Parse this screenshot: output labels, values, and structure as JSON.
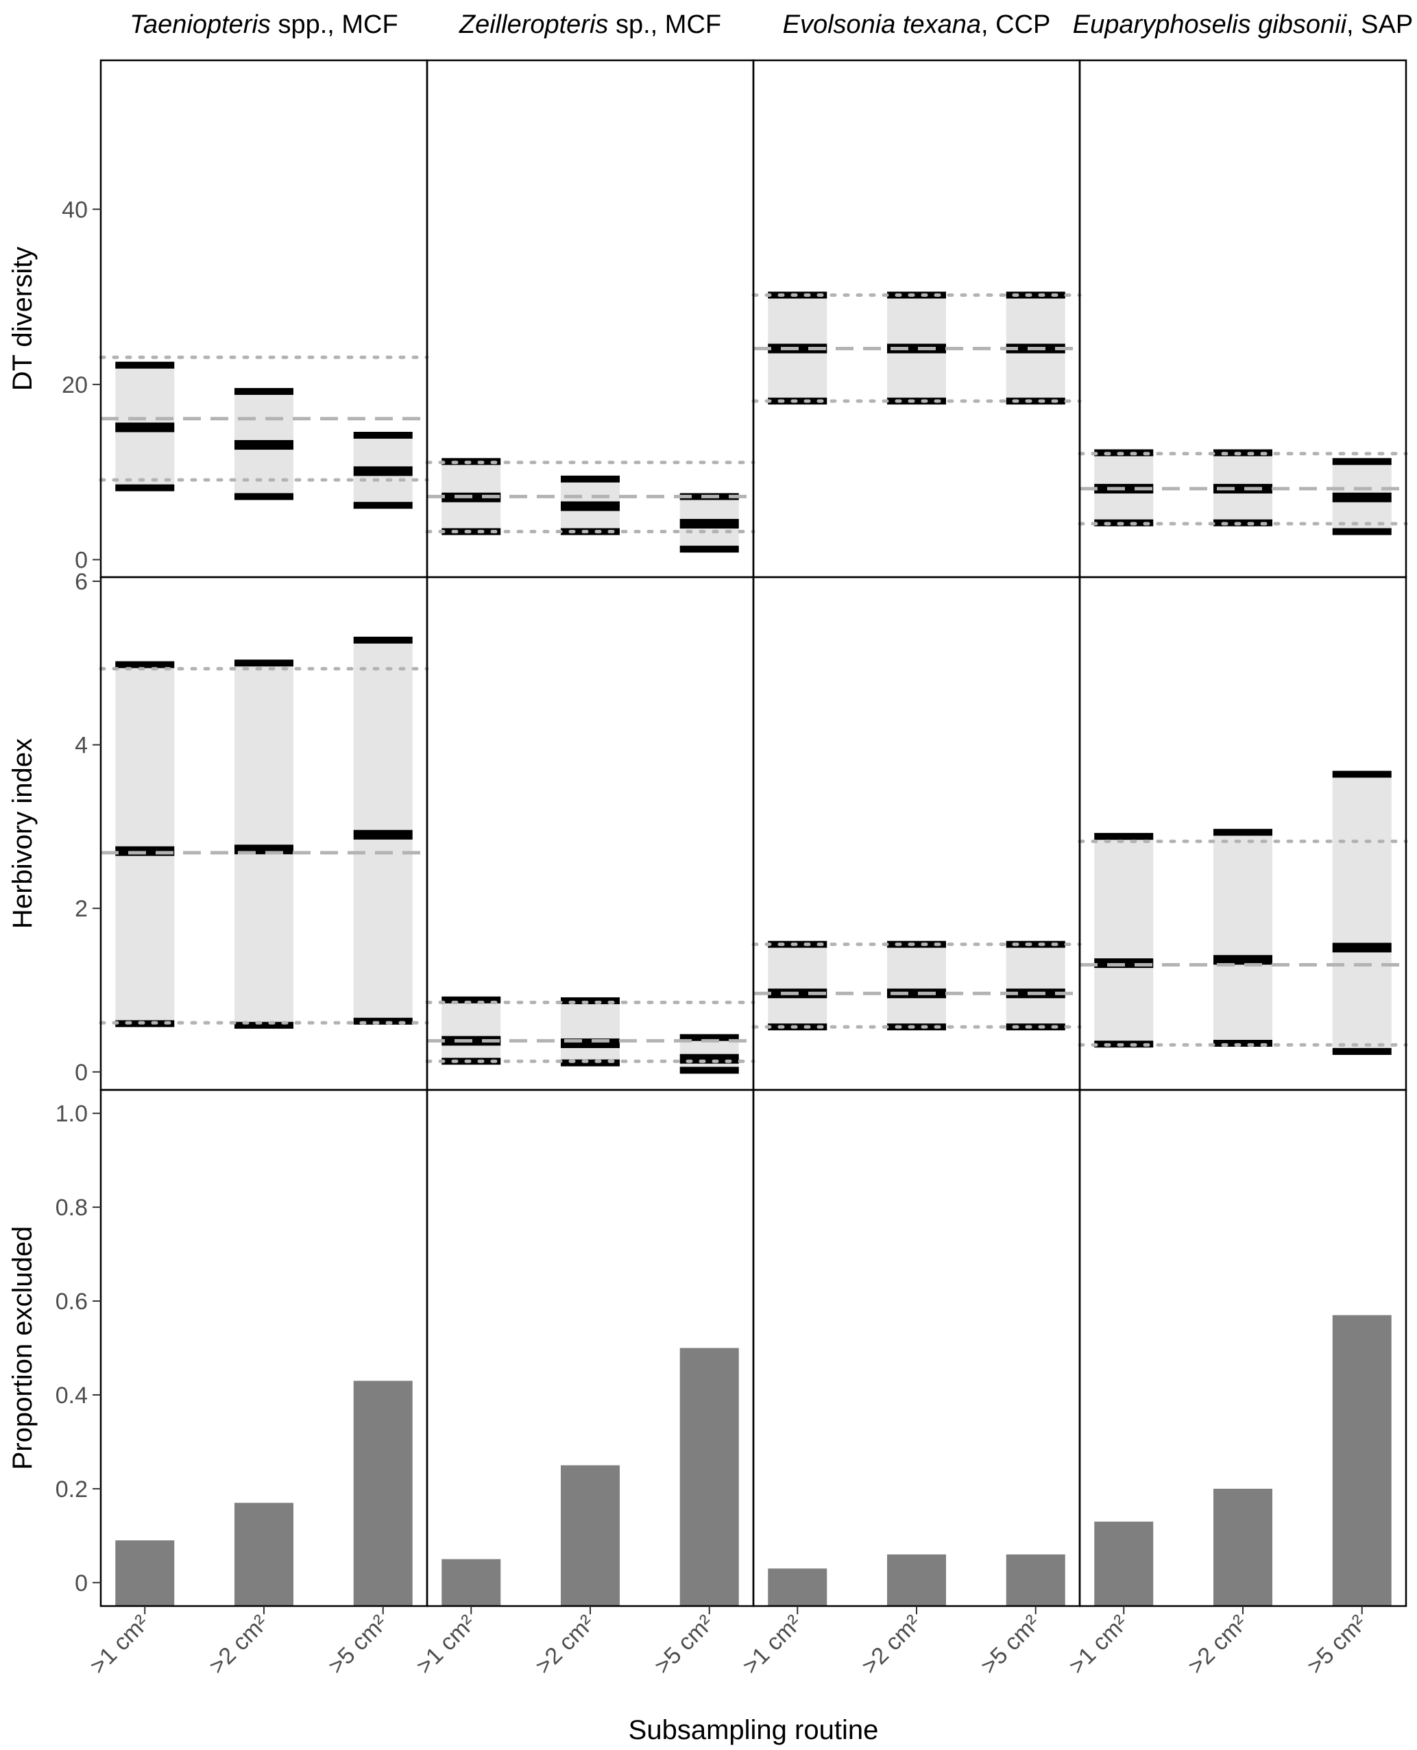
{
  "chart_data": {
    "type": "faceted-range-and-bar",
    "xlabel": "Subsampling routine",
    "categories": [
      ">1 cm²",
      ">2 cm²",
      ">5 cm²"
    ],
    "panels": [
      {
        "title_italic": "Taeniopteris",
        "title_plain": " spp., MCF",
        "diversity": {
          "ref_mean": 16.1,
          "ref_low": 9.1,
          "ref_high": 23.1,
          "groups": [
            {
              "category": ">1 cm²",
              "low": 8.2,
              "mean": 15.1,
              "high": 22.2
            },
            {
              "category": ">2 cm²",
              "low": 7.2,
              "mean": 13.1,
              "high": 19.2
            },
            {
              "category": ">5 cm²",
              "low": 6.2,
              "mean": 10.1,
              "high": 14.2
            }
          ]
        },
        "herbivory": {
          "ref_mean": 2.68,
          "ref_low": 0.6,
          "ref_high": 4.93,
          "groups": [
            {
              "category": ">1 cm²",
              "low": 0.59,
              "mean": 2.7,
              "high": 4.98
            },
            {
              "category": ">2 cm²",
              "low": 0.57,
              "mean": 2.72,
              "high": 5.0
            },
            {
              "category": ">5 cm²",
              "low": 0.62,
              "mean": 2.9,
              "high": 5.28
            }
          ]
        },
        "excluded": [
          0.09,
          0.17,
          0.43
        ]
      },
      {
        "title_italic": "Zeilleropteris",
        "title_plain": " sp., MCF",
        "diversity": {
          "ref_mean": 7.2,
          "ref_low": 3.2,
          "ref_high": 11.1,
          "groups": [
            {
              "category": ">1 cm²",
              "low": 3.2,
              "mean": 7.1,
              "high": 11.2
            },
            {
              "category": ">2 cm²",
              "low": 3.2,
              "mean": 6.1,
              "high": 9.2
            },
            {
              "category": ">5 cm²",
              "low": 1.2,
              "mean": 4.1,
              "high": 7.2
            }
          ]
        },
        "herbivory": {
          "ref_mean": 0.38,
          "ref_low": 0.13,
          "ref_high": 0.85,
          "groups": [
            {
              "category": ">1 cm²",
              "low": 0.13,
              "mean": 0.38,
              "high": 0.88
            },
            {
              "category": ">2 cm²",
              "low": 0.11,
              "mean": 0.35,
              "high": 0.87
            },
            {
              "category": ">5 cm²",
              "low": 0.02,
              "mean": 0.16,
              "high": 0.42
            }
          ]
        },
        "excluded": [
          0.05,
          0.25,
          0.5
        ]
      },
      {
        "title_italic": "Evolsonia texana",
        "title_plain": ", CCP",
        "diversity": {
          "ref_mean": 24.1,
          "ref_low": 18.1,
          "ref_high": 30.2,
          "groups": [
            {
              "category": ">1 cm²",
              "low": 18.1,
              "mean": 24.1,
              "high": 30.2
            },
            {
              "category": ">2 cm²",
              "low": 18.1,
              "mean": 24.1,
              "high": 30.2
            },
            {
              "category": ">5 cm²",
              "low": 18.1,
              "mean": 24.1,
              "high": 30.2
            }
          ]
        },
        "herbivory": {
          "ref_mean": 0.96,
          "ref_low": 0.55,
          "ref_high": 1.56,
          "groups": [
            {
              "category": ">1 cm²",
              "low": 0.55,
              "mean": 0.96,
              "high": 1.56
            },
            {
              "category": ">2 cm²",
              "low": 0.55,
              "mean": 0.96,
              "high": 1.56
            },
            {
              "category": ">5 cm²",
              "low": 0.55,
              "mean": 0.96,
              "high": 1.56
            }
          ]
        },
        "excluded": [
          0.03,
          0.06,
          0.06
        ]
      },
      {
        "title_italic": "Euparyphoselis gibsonii",
        "title_plain": ", SAP",
        "diversity": {
          "ref_mean": 8.1,
          "ref_low": 4.1,
          "ref_high": 12.1,
          "groups": [
            {
              "category": ">1 cm²",
              "low": 4.2,
              "mean": 8.1,
              "high": 12.2
            },
            {
              "category": ">2 cm²",
              "low": 4.2,
              "mean": 8.1,
              "high": 12.2
            },
            {
              "category": ">5 cm²",
              "low": 3.2,
              "mean": 7.1,
              "high": 11.2
            }
          ]
        },
        "herbivory": {
          "ref_mean": 1.31,
          "ref_low": 0.33,
          "ref_high": 2.82,
          "groups": [
            {
              "category": ">1 cm²",
              "low": 0.34,
              "mean": 1.33,
              "high": 2.88
            },
            {
              "category": ">2 cm²",
              "low": 0.35,
              "mean": 1.37,
              "high": 2.93
            },
            {
              "category": ">5 cm²",
              "low": 0.25,
              "mean": 1.52,
              "high": 3.64
            }
          ]
        },
        "excluded": [
          0.13,
          0.2,
          0.57
        ]
      }
    ],
    "rows": [
      {
        "key": "diversity",
        "ylabel": "DT diversity",
        "ylim": [
          -2,
          57
        ],
        "ticks": [
          0,
          20,
          40
        ],
        "tick_labels": [
          "0",
          "20",
          "40"
        ]
      },
      {
        "key": "herbivory",
        "ylabel": "Herbivory index",
        "ylim": [
          -0.22,
          6.05
        ],
        "ticks": [
          0,
          2,
          4,
          6
        ],
        "tick_labels": [
          "0",
          "2",
          "4",
          "6"
        ]
      },
      {
        "key": "excluded",
        "ylabel": "Proportion excluded",
        "ylim": [
          -0.05,
          1.05
        ],
        "ticks": [
          0,
          0.2,
          0.4,
          0.6,
          0.8,
          1.0
        ],
        "tick_labels": [
          "0",
          "0.2",
          "0.4",
          "0.6",
          "0.8",
          "1.0"
        ]
      }
    ],
    "colors": {
      "band": "#e5e5e5",
      "bar": "#7f7f7f",
      "ref_line": "#b3b3b3",
      "marker": "#000000",
      "frame": "#000000"
    }
  }
}
